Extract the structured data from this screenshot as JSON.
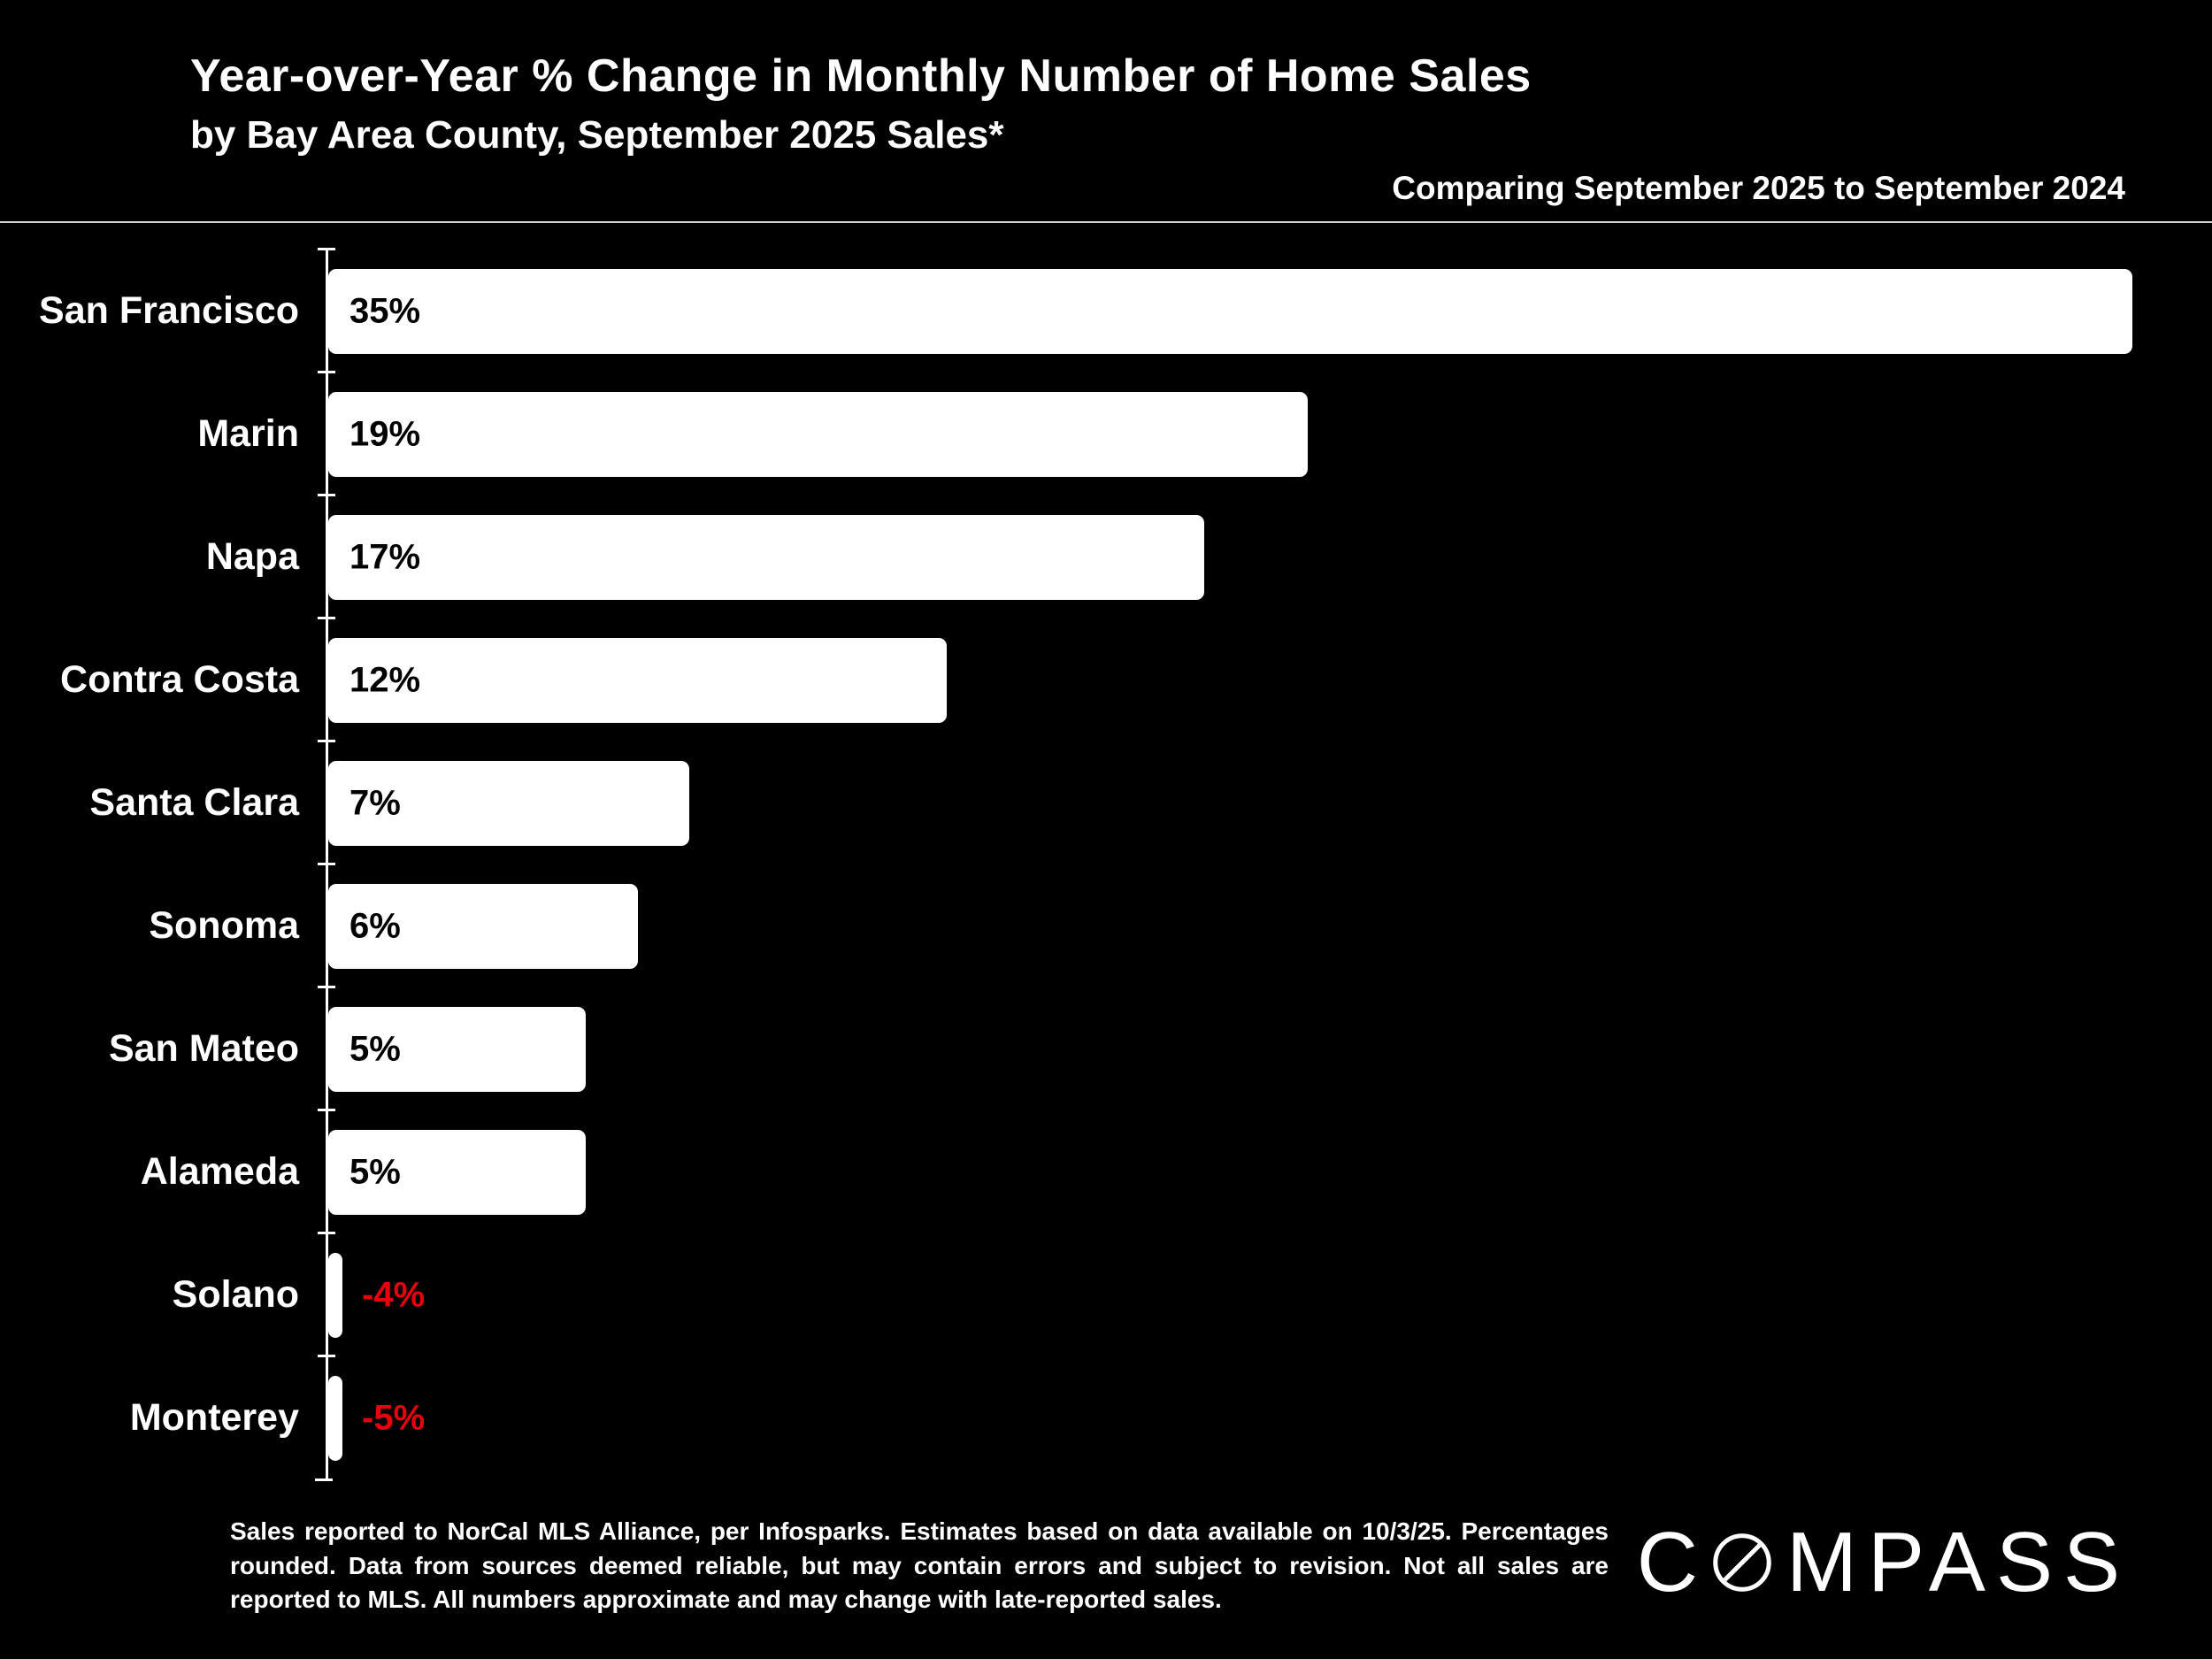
{
  "chart_data": {
    "type": "bar",
    "orientation": "horizontal",
    "title": "Year-over-Year % Change in Monthly Number of Home Sales",
    "subtitle": "by Bay Area County, September 2025 Sales*",
    "annotation": "Comparing September 2025 to September 2024",
    "categories": [
      "San Francisco",
      "Marin",
      "Napa",
      "Contra Costa",
      "Santa Clara",
      "Sonoma",
      "San Mateo",
      "Alameda",
      "Solano",
      "Monterey"
    ],
    "values": [
      35,
      19,
      17,
      12,
      7,
      6,
      5,
      5,
      -4,
      -5
    ],
    "value_labels": [
      "35%",
      "19%",
      "17%",
      "12%",
      "7%",
      "6%",
      "5%",
      "5%",
      "-4%",
      "-5%"
    ],
    "xlim": [
      0,
      35
    ],
    "grid": false,
    "legend": false,
    "background_color": "#000000",
    "bar_color": "#ffffff",
    "positive_label_color": "#000000",
    "negative_label_color": "#e8000d"
  },
  "footer": {
    "notes": "Sales reported to NorCal MLS Alliance, per Infosparks. Estimates based on data available on 10/3/25. Percentages rounded. Data from sources deemed reliable, but may contain errors and subject to revision. Not all sales are reported to MLS. All numbers approximate and may change with late-reported sales.",
    "brand": "COMPASS"
  }
}
